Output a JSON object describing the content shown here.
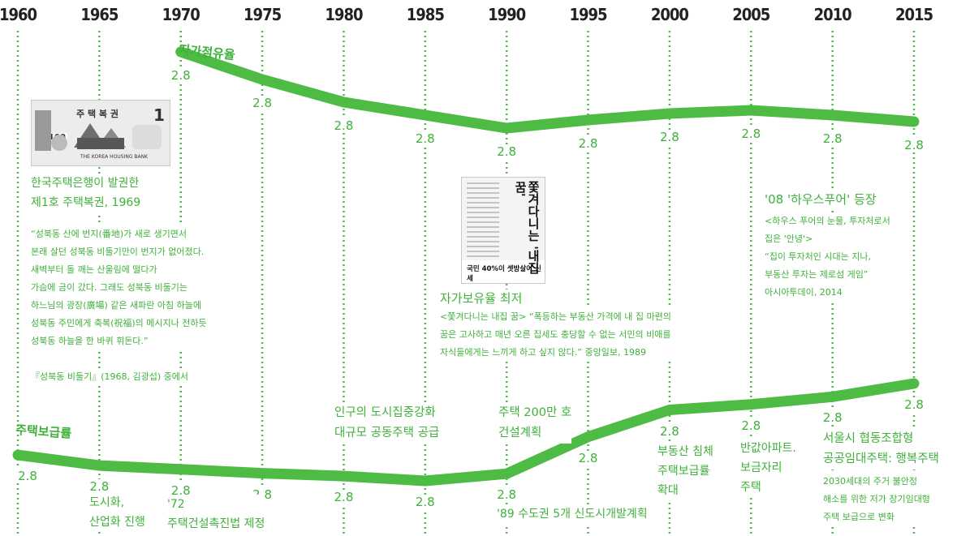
{
  "chart_data": {
    "type": "line",
    "x": [
      1960,
      1965,
      1970,
      1975,
      1980,
      1985,
      1990,
      1995,
      2000,
      2005,
      2010,
      2015
    ],
    "x_tick_labels": [
      "1960",
      "1965",
      "1970",
      "1975",
      "1980",
      "1985",
      "1990",
      "1995",
      "2000",
      "2005",
      "2010",
      "2015"
    ],
    "grid": true,
    "series": [
      {
        "name": "자가점유율",
        "x": [
          1970,
          1975,
          1980,
          1985,
          1990,
          1995,
          2000,
          2005,
          2010,
          2015
        ],
        "values": [
          2.8,
          2.8,
          2.8,
          2.8,
          2.8,
          2.8,
          2.8,
          2.8,
          2.8,
          2.8
        ],
        "trend": [
          95,
          78,
          64,
          56,
          48,
          53,
          57,
          59,
          56,
          52
        ]
      },
      {
        "name": "주택보급률",
        "x": [
          1960,
          1965,
          1970,
          1975,
          1980,
          1985,
          1990,
          1995,
          2000,
          2005,
          2010,
          2015
        ],
        "values": [
          2.8,
          2.8,
          2.8,
          2.8,
          2.8,
          2.8,
          2.8,
          2.8,
          2.8,
          2.8,
          2.8,
          2.8
        ],
        "trend": [
          79.1,
          75.1,
          73.7,
          72.2,
          71.1,
          69.3,
          72.0,
          86.0,
          96.2,
          98.3,
          101.2,
          106.2
        ]
      }
    ]
  },
  "colors": {
    "line": "#4dbb44",
    "grid": "#4dbb44",
    "text": "#3fb13a",
    "year": "#222222"
  },
  "notes": {
    "bond_caption": "한국주택은행이 발권한\n제1호 주택복권, 1969",
    "bond_image": {
      "title": "주 택 복 권",
      "amount": "W100",
      "number": "1",
      "bank": "THE KOREA HOUSING BANK"
    },
    "quote": "“성북동 산에 번지(番地)가 새로 생기면서\n본래 살던 성북동 비둘기만이 번지가 없어졌다.\n새벽부터 돌 깨는 산울림에 떨다가\n가슴에 금이 갔다. 그래도 성북동 비둘기는\n하느님의 광장(廣場) 같은 새파란 아침 하늘에\n성북동 주민에게 축복(祝福)의 메시지나 전하듯\n성북동 하늘을 한 바퀴 휘돈다.”",
    "quote_source": "『성북동 비둘기』(1968, 김광섭) 중에서",
    "clipping_image": {
      "headline": "쫓겨다니는 '내집 꿈'",
      "subhead": "국민 40%이 셋방살이 신세"
    },
    "lowest_title": "자가보유율 최저",
    "lowest_text": "<쫓겨다니는 내집 꿈> “폭등하는 부동산 가격에 내 집 마련의\n꿈은 고사하고 매년 오른 집세도 충당할 수 없는 서민의 비애를\n자식들에게는 느끼게 하고 싶지 않다.” 중앙일보, 1989",
    "housepoor_title": "'08 '하우스푸어' 등장",
    "housepoor_text": "<하우스 푸어의 눈물, 투자처로서\n집은 '안녕'>\n“집이 투자처인 시대는 지나,\n부동산 투자는 제로섬 게임”\n아시아투데이, 2014",
    "e1965": "도시화,\n산업화 진행",
    "e1972": "'72\n주택건설촉진법 제정",
    "e1980": "인구의 도시집중강화\n대규모 공동주택 공급",
    "e1990a": "주택 200만 호\n건설계획",
    "e1989": "'89 수도권 5개 신도시개발계획",
    "e2000": "부동산 침체\n주택보급률\n확대",
    "e2005": "반값아파트.\n보금자리\n주택",
    "e2015_title": "서울시 협동조합형\n공공임대주택: 행복주택",
    "e2015_text": "2030세대의 주거 불안정\n해소를 위한 저가 장기임대형\n주택 보급으로 변화"
  }
}
